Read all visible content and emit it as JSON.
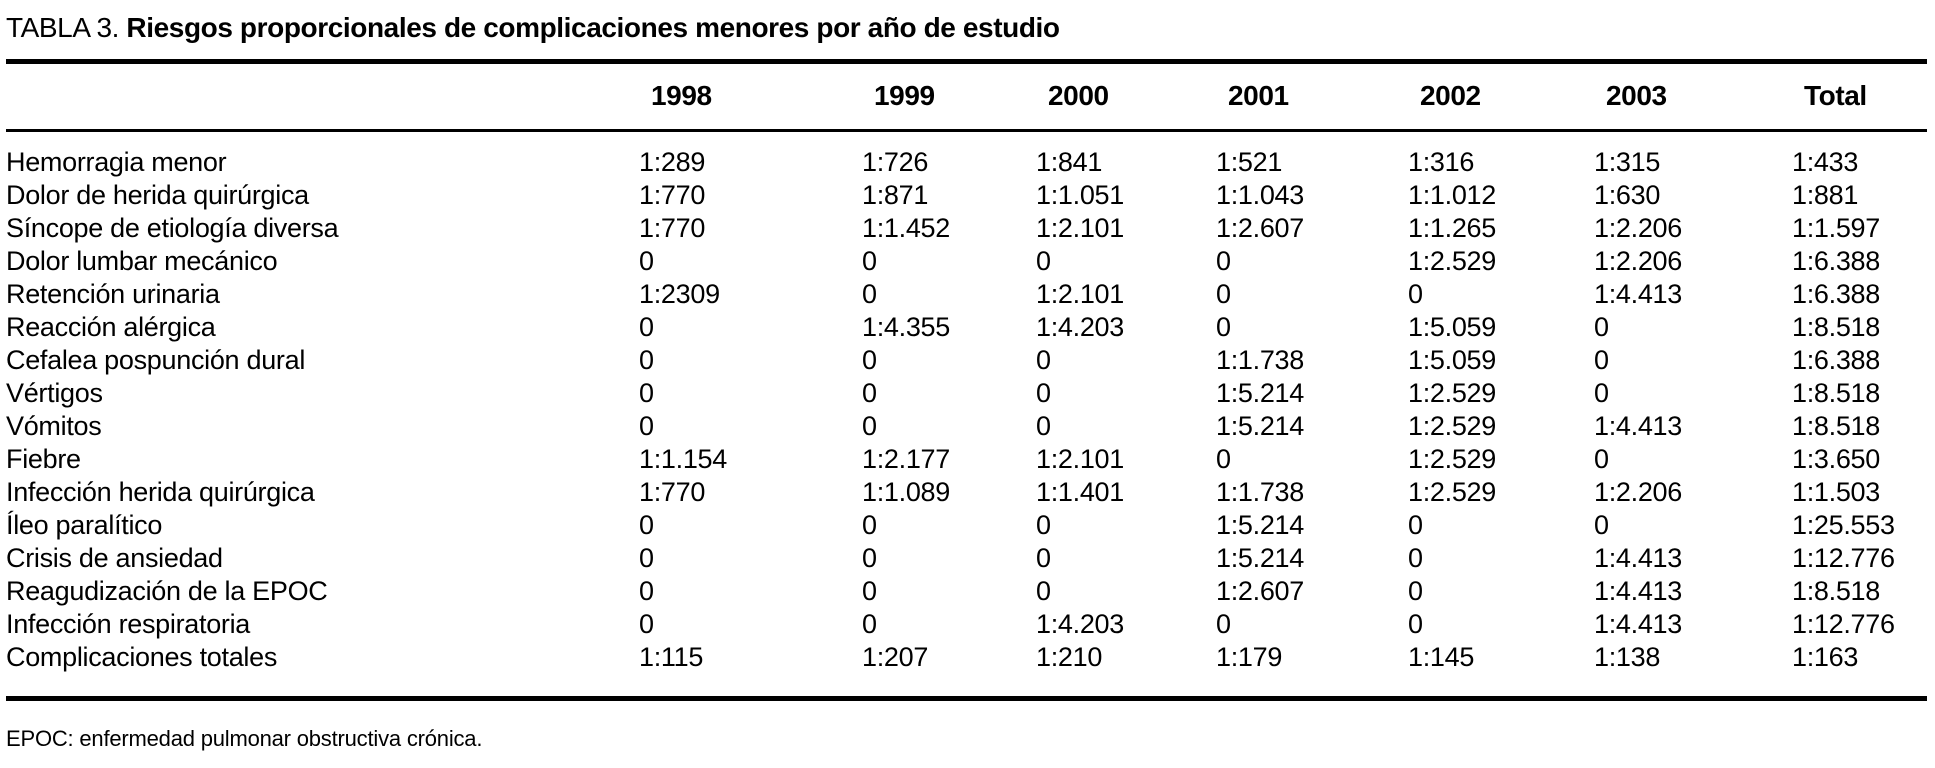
{
  "title": {
    "prefix": "TABLA 3.",
    "main": "Riesgos proporcionales de complicaciones menores por año de estudio"
  },
  "table": {
    "columns": [
      "1998",
      "1999",
      "2000",
      "2001",
      "2002",
      "2003",
      "Total"
    ],
    "rows": [
      {
        "label": "Hemorragia menor",
        "values": [
          "1:289",
          "1:726",
          "1:841",
          "1:521",
          "1:316",
          "1:315",
          "1:433"
        ]
      },
      {
        "label": "Dolor de herida quirúrgica",
        "values": [
          "1:770",
          "1:871",
          "1:1.051",
          "1:1.043",
          "1:1.012",
          "1:630",
          "1:881"
        ]
      },
      {
        "label": "Síncope de etiología diversa",
        "values": [
          "1:770",
          "1:1.452",
          "1:2.101",
          "1:2.607",
          "1:1.265",
          "1:2.206",
          "1:1.597"
        ]
      },
      {
        "label": "Dolor lumbar mecánico",
        "values": [
          "0",
          "0",
          "0",
          "0",
          "1:2.529",
          "1:2.206",
          "1:6.388"
        ]
      },
      {
        "label": "Retención urinaria",
        "values": [
          "1:2309",
          "0",
          "1:2.101",
          "0",
          "0",
          "1:4.413",
          "1:6.388"
        ]
      },
      {
        "label": "Reacción alérgica",
        "values": [
          "0",
          "1:4.355",
          "1:4.203",
          "0",
          "1:5.059",
          "0",
          "1:8.518"
        ]
      },
      {
        "label": "Cefalea pospunción dural",
        "values": [
          "0",
          "0",
          "0",
          "1:1.738",
          "1:5.059",
          "0",
          "1:6.388"
        ]
      },
      {
        "label": "Vértigos",
        "values": [
          "0",
          "0",
          "0",
          "1:5.214",
          "1:2.529",
          "0",
          "1:8.518"
        ]
      },
      {
        "label": "Vómitos",
        "values": [
          "0",
          "0",
          "0",
          "1:5.214",
          "1:2.529",
          "1:4.413",
          "1:8.518"
        ]
      },
      {
        "label": "Fiebre",
        "values": [
          "1:1.154",
          "1:2.177",
          "1:2.101",
          "0",
          "1:2.529",
          "0",
          "1:3.650"
        ]
      },
      {
        "label": "Infección herida quirúrgica",
        "values": [
          "1:770",
          "1:1.089",
          "1:1.401",
          "1:1.738",
          "1:2.529",
          "1:2.206",
          "1:1.503"
        ]
      },
      {
        "label": "Íleo paralítico",
        "values": [
          "0",
          "0",
          "0",
          "1:5.214",
          "0",
          "0",
          "1:25.553"
        ]
      },
      {
        "label": "Crisis de ansiedad",
        "values": [
          "0",
          "0",
          "0",
          "1:5.214",
          "0",
          "1:4.413",
          "1:12.776"
        ]
      },
      {
        "label": "Reagudización de la EPOC",
        "values": [
          "0",
          "0",
          "0",
          "1:2.607",
          "0",
          "1:4.413",
          "1:8.518"
        ]
      },
      {
        "label": "Infección respiratoria",
        "values": [
          "0",
          "0",
          "1:4.203",
          "0",
          "0",
          "1:4.413",
          "1:12.776"
        ]
      },
      {
        "label": "Complicaciones totales",
        "values": [
          "1:115",
          "1:207",
          "1:210",
          "1:179",
          "1:145",
          "1:138",
          "1:163"
        ]
      }
    ]
  },
  "footnote": "EPOC: enfermedad pulmonar obstructiva crónica."
}
